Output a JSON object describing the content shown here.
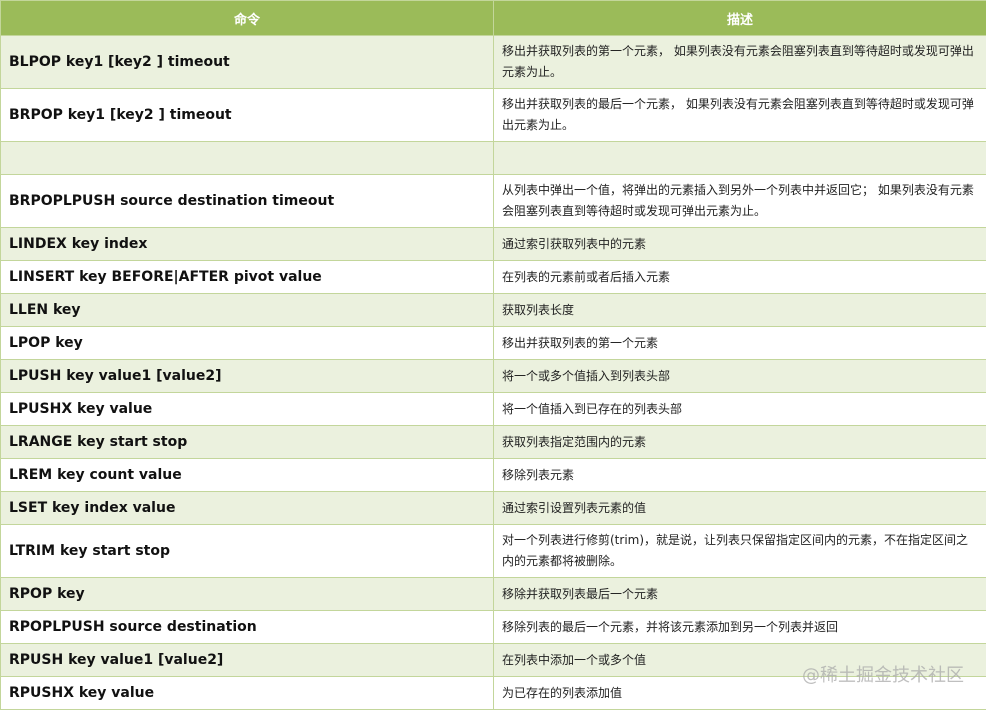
{
  "header": {
    "command": "命令",
    "description": "描述"
  },
  "rows": [
    {
      "command": "BLPOP key1 [key2 ] timeout",
      "description": "移出并获取列表的第一个元素， 如果列表没有元素会阻塞列表直到等待超时或发现可弹出元素为止。",
      "tall": true
    },
    {
      "command": "BRPOP key1 [key2 ] timeout",
      "description": "移出并获取列表的最后一个元素， 如果列表没有元素会阻塞列表直到等待超时或发现可弹出元素为止。",
      "tall": true
    },
    {
      "command": "",
      "description": ""
    },
    {
      "command": "BRPOPLPUSH source destination timeout",
      "description": "从列表中弹出一个值，将弹出的元素插入到另外一个列表中并返回它； 如果列表没有元素会阻塞列表直到等待超时或发现可弹出元素为止。",
      "tall": true
    },
    {
      "command": "LINDEX key index",
      "description": "通过索引获取列表中的元素"
    },
    {
      "command": "LINSERT key BEFORE|AFTER pivot value",
      "description": "在列表的元素前或者后插入元素"
    },
    {
      "command": "LLEN key",
      "description": "获取列表长度"
    },
    {
      "command": "LPOP key",
      "description": "移出并获取列表的第一个元素"
    },
    {
      "command": "LPUSH key value1 [value2]",
      "description": "将一个或多个值插入到列表头部"
    },
    {
      "command": "LPUSHX key value",
      "description": "将一个值插入到已存在的列表头部"
    },
    {
      "command": "LRANGE key start stop",
      "description": "获取列表指定范围内的元素"
    },
    {
      "command": "LREM key count value",
      "description": "移除列表元素"
    },
    {
      "command": "LSET key index value",
      "description": "通过索引设置列表元素的值"
    },
    {
      "command": "LTRIM key start stop",
      "description": "对一个列表进行修剪(trim)，就是说，让列表只保留指定区间内的元素，不在指定区间之内的元素都将被删除。",
      "tall": true
    },
    {
      "command": "RPOP key",
      "description": "移除并获取列表最后一个元素"
    },
    {
      "command": "RPOPLPUSH source destination",
      "description": "移除列表的最后一个元素，并将该元素添加到另一个列表并返回"
    },
    {
      "command": "RPUSH key value1 [value2]",
      "description": "在列表中添加一个或多个值"
    },
    {
      "command": "RPUSHX key value",
      "description": "为已存在的列表添加值"
    }
  ],
  "watermark": "@稀土掘金技术社区",
  "colors": {
    "header": "#9bbb59",
    "alt_row": "#ebf1de",
    "border": "#c3d69b"
  }
}
